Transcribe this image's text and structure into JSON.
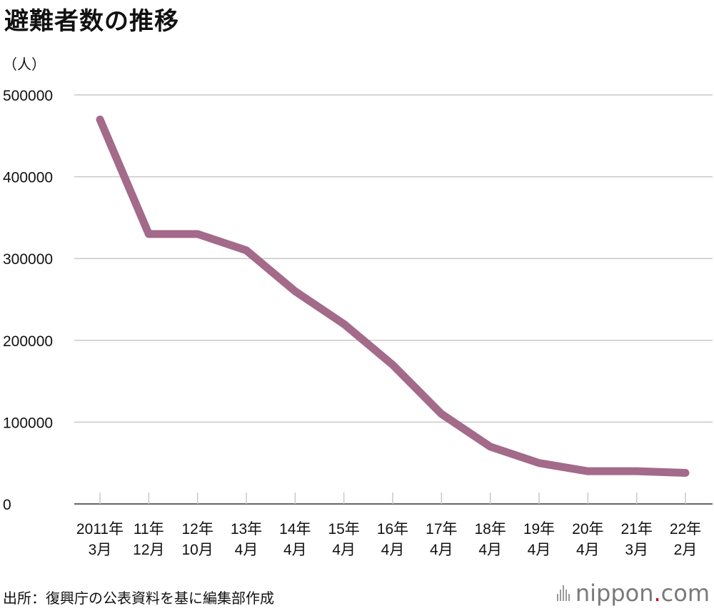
{
  "title": "避難者数の推移",
  "unit_label": "（人）",
  "source": "出所：復興庁の公表資料を基に編集部作成",
  "logo": {
    "name": "nippon",
    "dot": ".",
    "tld": "com"
  },
  "colors": {
    "line": "#A36A8A",
    "grid": "#C8C8C8",
    "axis": "#333333",
    "logo_dot": "#D0021B"
  },
  "chart_data": {
    "type": "line",
    "title": "避難者数の推移",
    "ylabel": "（人）",
    "xlabel": "",
    "ylim": [
      0,
      500000
    ],
    "yticks": [
      0,
      100000,
      200000,
      300000,
      400000,
      500000
    ],
    "categories": [
      [
        "2011年",
        "3月"
      ],
      [
        "11年",
        "12月"
      ],
      [
        "12年",
        "10月"
      ],
      [
        "13年",
        "4月"
      ],
      [
        "14年",
        "4月"
      ],
      [
        "15年",
        "4月"
      ],
      [
        "16年",
        "4月"
      ],
      [
        "17年",
        "4月"
      ],
      [
        "18年",
        "4月"
      ],
      [
        "19年",
        "4月"
      ],
      [
        "20年",
        "4月"
      ],
      [
        "21年",
        "3月"
      ],
      [
        "22年",
        "2月"
      ]
    ],
    "series": [
      {
        "name": "避難者数",
        "values": [
          470000,
          330000,
          330000,
          310000,
          260000,
          220000,
          170000,
          110000,
          70000,
          50000,
          40000,
          40000,
          38000
        ]
      }
    ],
    "grid": true
  }
}
